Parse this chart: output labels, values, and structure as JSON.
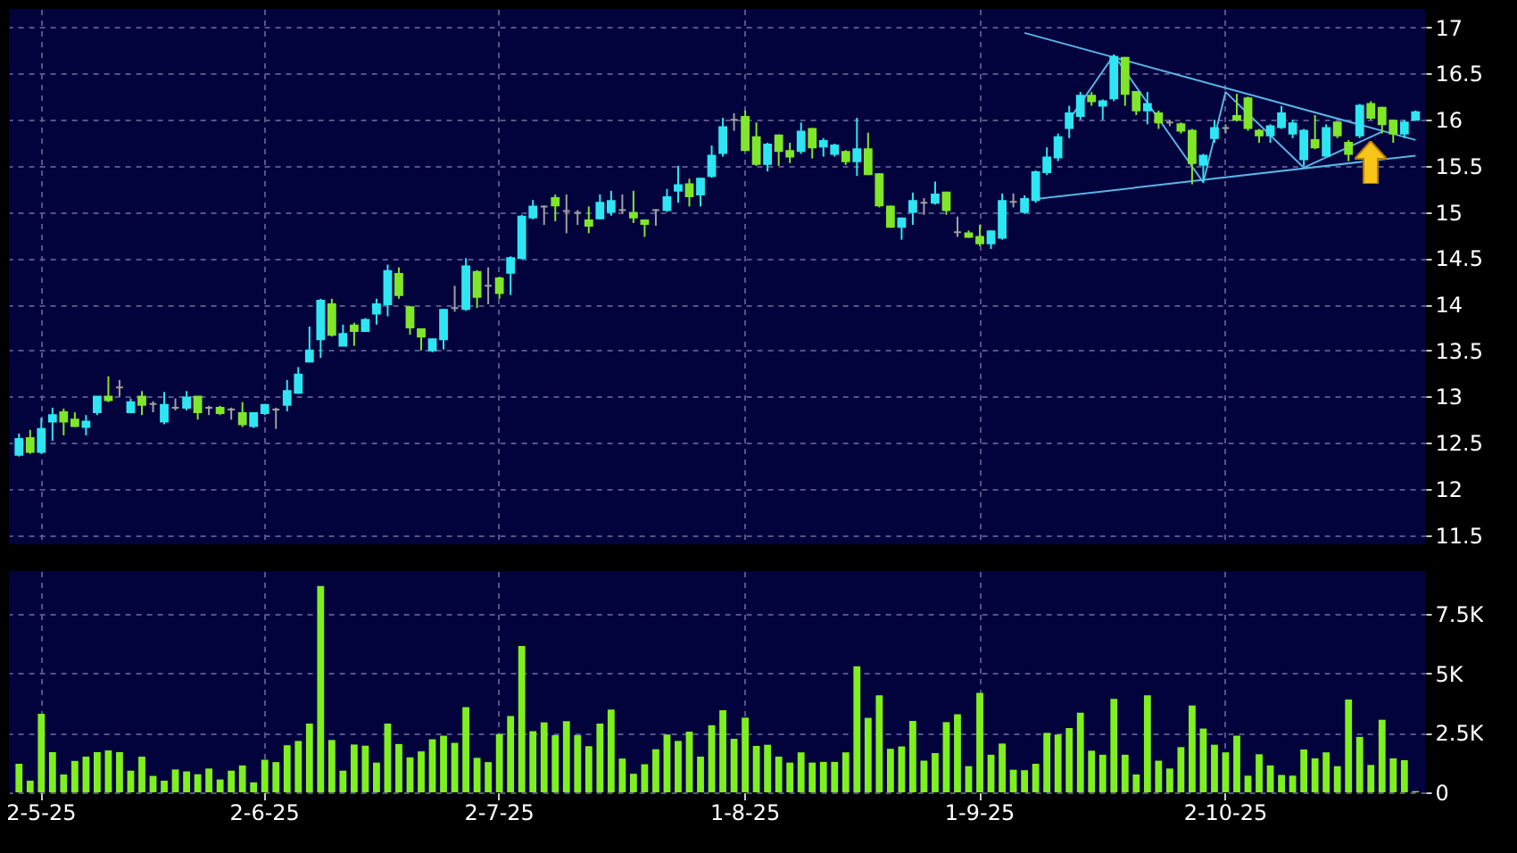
{
  "chart_data": [
    {
      "type": "candlestick",
      "categories": [
        null,
        null,
        null,
        null,
        null,
        null,
        null,
        null,
        null,
        null,
        null,
        null,
        null,
        null,
        null,
        null,
        null,
        null,
        null,
        null,
        null,
        null,
        null,
        null,
        null,
        null,
        null,
        null,
        null,
        null,
        null,
        null,
        null,
        null,
        null,
        null,
        null,
        null,
        null,
        null,
        null,
        null,
        null,
        null,
        null,
        null,
        null,
        null,
        null,
        null,
        null,
        null,
        null,
        null,
        null,
        null,
        null,
        null,
        null,
        null,
        null,
        null,
        null,
        null,
        null,
        null,
        null,
        null,
        null,
        null,
        null,
        null,
        null,
        null,
        null,
        null,
        null,
        null,
        null,
        null,
        null,
        null,
        null,
        null,
        null,
        null,
        null,
        null,
        null,
        null,
        null,
        null,
        null,
        null,
        null,
        null,
        null,
        null,
        null,
        null,
        null,
        null,
        null,
        null,
        null,
        null,
        null,
        null,
        null,
        null,
        null,
        null,
        null,
        null,
        null,
        null,
        null,
        null,
        null,
        null,
        null,
        null,
        null,
        null,
        null,
        null
      ],
      "ohlc": [
        [
          12.37,
          12.6,
          12.35,
          12.54
        ],
        [
          12.55,
          12.64,
          12.38,
          12.4
        ],
        [
          12.4,
          12.77,
          12.38,
          12.65
        ],
        [
          12.73,
          12.88,
          12.52,
          12.8
        ],
        [
          12.83,
          12.87,
          12.58,
          12.73
        ],
        [
          12.75,
          12.83,
          12.67,
          12.68
        ],
        [
          12.67,
          12.8,
          12.58,
          12.73
        ],
        [
          12.83,
          13.0,
          12.8,
          13.0
        ],
        [
          13.0,
          13.22,
          12.94,
          12.96
        ],
        [
          13.1,
          13.18,
          13.0,
          13.1
        ],
        [
          12.83,
          12.98,
          12.82,
          12.94
        ],
        [
          13.0,
          13.06,
          12.8,
          12.91
        ],
        [
          12.92,
          12.95,
          12.83,
          12.92
        ],
        [
          12.73,
          13.05,
          12.7,
          12.91
        ],
        [
          12.88,
          12.98,
          12.85,
          12.88
        ],
        [
          12.88,
          13.06,
          12.85,
          12.99
        ],
        [
          13.0,
          13.0,
          12.75,
          12.83
        ],
        [
          12.88,
          12.9,
          12.8,
          12.88
        ],
        [
          12.88,
          12.9,
          12.8,
          12.82
        ],
        [
          12.86,
          12.88,
          12.75,
          12.86
        ],
        [
          12.82,
          12.94,
          12.67,
          12.7
        ],
        [
          12.68,
          12.83,
          12.66,
          12.82
        ],
        [
          12.82,
          12.92,
          12.8,
          12.91
        ],
        [
          12.86,
          12.88,
          12.65,
          12.86
        ],
        [
          12.91,
          13.18,
          12.84,
          13.06
        ],
        [
          13.04,
          13.32,
          13.03,
          13.24
        ],
        [
          13.38,
          13.76,
          13.37,
          13.5
        ],
        [
          13.62,
          14.06,
          13.42,
          14.04
        ],
        [
          14.0,
          14.06,
          13.65,
          13.67
        ],
        [
          13.55,
          13.78,
          13.55,
          13.68
        ],
        [
          13.77,
          13.8,
          13.55,
          13.71
        ],
        [
          13.71,
          13.85,
          13.7,
          13.83
        ],
        [
          13.9,
          14.06,
          13.78,
          14.0
        ],
        [
          14.0,
          14.43,
          13.87,
          14.36
        ],
        [
          14.33,
          14.4,
          14.06,
          14.1
        ],
        [
          13.97,
          13.98,
          13.67,
          13.75
        ],
        [
          13.73,
          13.74,
          13.5,
          13.65
        ],
        [
          13.5,
          13.63,
          13.48,
          13.62
        ],
        [
          13.62,
          13.95,
          13.51,
          13.94
        ],
        [
          13.96,
          14.2,
          13.92,
          13.96
        ],
        [
          13.95,
          14.5,
          13.93,
          14.41
        ],
        [
          14.35,
          14.37,
          13.96,
          14.08
        ],
        [
          14.2,
          14.4,
          14.0,
          14.2
        ],
        [
          14.28,
          14.3,
          14.06,
          14.12
        ],
        [
          14.34,
          14.52,
          14.1,
          14.5
        ],
        [
          14.5,
          14.97,
          14.49,
          14.95
        ],
        [
          14.94,
          15.13,
          14.92,
          15.06
        ],
        [
          15.06,
          15.07,
          14.86,
          15.06
        ],
        [
          15.15,
          15.19,
          14.9,
          15.07
        ],
        [
          15.01,
          15.19,
          14.77,
          15.01
        ],
        [
          14.99,
          15.02,
          14.86,
          14.99
        ],
        [
          14.91,
          15.06,
          14.77,
          14.85
        ],
        [
          14.93,
          15.19,
          14.92,
          15.1
        ],
        [
          15.0,
          15.23,
          14.96,
          15.12
        ],
        [
          15.02,
          15.19,
          14.98,
          15.02
        ],
        [
          14.99,
          15.23,
          14.88,
          14.94
        ],
        [
          14.91,
          14.92,
          14.73,
          14.87
        ],
        [
          15.02,
          15.03,
          14.85,
          15.02
        ],
        [
          15.02,
          15.25,
          15.0,
          15.16
        ],
        [
          15.23,
          15.5,
          15.1,
          15.29
        ],
        [
          15.3,
          15.36,
          15.06,
          15.17
        ],
        [
          15.19,
          15.37,
          15.06,
          15.36
        ],
        [
          15.39,
          15.72,
          15.37,
          15.61
        ],
        [
          15.64,
          16.02,
          15.6,
          15.92
        ],
        [
          16.0,
          16.07,
          15.88,
          16.0
        ],
        [
          16.03,
          16.1,
          15.66,
          15.67
        ],
        [
          15.81,
          15.97,
          15.5,
          15.52
        ],
        [
          15.52,
          15.75,
          15.44,
          15.73
        ],
        [
          15.83,
          15.84,
          15.5,
          15.66
        ],
        [
          15.66,
          15.75,
          15.53,
          15.6
        ],
        [
          15.66,
          15.97,
          15.63,
          15.87
        ],
        [
          15.9,
          15.91,
          15.58,
          15.7
        ],
        [
          15.71,
          15.8,
          15.6,
          15.77
        ],
        [
          15.63,
          15.74,
          15.6,
          15.72
        ],
        [
          15.65,
          15.67,
          15.51,
          15.55
        ],
        [
          15.55,
          16.02,
          15.39,
          15.68
        ],
        [
          15.68,
          15.86,
          15.4,
          15.41
        ],
        [
          15.41,
          15.42,
          15.05,
          15.07
        ],
        [
          15.06,
          15.07,
          14.83,
          14.84
        ],
        [
          14.84,
          14.94,
          14.7,
          14.93
        ],
        [
          15.0,
          15.21,
          14.86,
          15.12
        ],
        [
          15.1,
          15.15,
          14.97,
          15.1
        ],
        [
          15.1,
          15.33,
          15.08,
          15.19
        ],
        [
          15.21,
          15.22,
          14.97,
          15.02
        ],
        [
          14.78,
          14.95,
          14.73,
          14.78
        ],
        [
          14.77,
          14.8,
          14.72,
          14.73
        ],
        [
          14.73,
          14.86,
          14.63,
          14.66
        ],
        [
          14.66,
          14.8,
          14.6,
          14.79
        ],
        [
          14.72,
          15.2,
          14.7,
          15.12
        ],
        [
          15.11,
          15.2,
          15.05,
          15.11
        ],
        [
          15.0,
          15.18,
          14.98,
          15.14
        ],
        [
          15.13,
          15.45,
          15.1,
          15.43
        ],
        [
          15.43,
          15.7,
          15.4,
          15.59
        ],
        [
          15.59,
          15.85,
          15.55,
          15.81
        ],
        [
          15.91,
          16.15,
          15.8,
          16.07
        ],
        [
          16.04,
          16.3,
          16.0,
          16.26
        ],
        [
          16.26,
          16.3,
          16.15,
          16.2
        ],
        [
          16.15,
          16.22,
          16.0,
          16.2
        ],
        [
          16.23,
          16.7,
          16.2,
          16.68
        ],
        [
          16.67,
          16.68,
          16.15,
          16.28
        ],
        [
          16.3,
          16.3,
          16.05,
          16.1
        ],
        [
          16.1,
          16.3,
          15.95,
          16.17
        ],
        [
          16.07,
          16.1,
          15.9,
          15.97
        ],
        [
          15.97,
          16.0,
          15.93,
          15.97
        ],
        [
          15.95,
          15.97,
          15.85,
          15.88
        ],
        [
          15.88,
          15.9,
          15.3,
          15.53
        ],
        [
          15.51,
          15.63,
          15.33,
          15.61
        ],
        [
          15.8,
          16.0,
          15.75,
          15.91
        ],
        [
          15.91,
          15.95,
          15.85,
          15.91
        ],
        [
          16.04,
          16.28,
          15.98,
          16.0
        ],
        [
          16.23,
          16.25,
          15.88,
          15.91
        ],
        [
          15.88,
          15.9,
          15.75,
          15.83
        ],
        [
          15.83,
          15.95,
          15.75,
          15.93
        ],
        [
          15.92,
          16.15,
          15.9,
          16.07
        ],
        [
          15.85,
          16.0,
          15.8,
          15.96
        ],
        [
          15.57,
          15.9,
          15.5,
          15.88
        ],
        [
          15.78,
          16.05,
          15.68,
          15.7
        ],
        [
          15.61,
          15.95,
          15.6,
          15.91
        ],
        [
          15.97,
          15.98,
          15.8,
          15.83
        ],
        [
          15.75,
          15.78,
          15.55,
          15.63
        ],
        [
          15.83,
          16.17,
          15.8,
          16.15
        ],
        [
          16.17,
          16.2,
          16.0,
          16.02
        ],
        [
          16.13,
          16.14,
          15.85,
          15.95
        ],
        [
          15.99,
          16.0,
          15.75,
          15.85
        ],
        [
          15.85,
          16.0,
          15.8,
          15.97
        ],
        [
          16.0,
          16.1,
          16.0,
          16.08
        ]
      ],
      "colors": [
        "#2ee6f2",
        "#80e62a",
        "#2ee6f2",
        "#2ee6f2",
        "#80e62a",
        "#80e62a",
        "#2ee6f2",
        "#2ee6f2",
        "#80e62a",
        "#a0a0a0",
        "#2ee6f2",
        "#80e62a",
        "#a0a0a0",
        "#2ee6f2",
        "#a0a0a0",
        "#2ee6f2",
        "#80e62a",
        "#a0a0a0",
        "#80e62a",
        "#a0a0a0",
        "#80e62a",
        "#2ee6f2",
        "#2ee6f2",
        "#a0a0a0",
        "#2ee6f2",
        "#2ee6f2",
        "#2ee6f2",
        "#2ee6f2",
        "#80e62a",
        "#2ee6f2",
        "#80e62a",
        "#2ee6f2",
        "#2ee6f2",
        "#2ee6f2",
        "#80e62a",
        "#80e62a",
        "#80e62a",
        "#2ee6f2",
        "#2ee6f2",
        "#a0a0a0",
        "#2ee6f2",
        "#80e62a",
        "#a0a0a0",
        "#80e62a",
        "#2ee6f2",
        "#2ee6f2",
        "#2ee6f2",
        "#a0a0a0",
        "#80e62a",
        "#a0a0a0",
        "#a0a0a0",
        "#80e62a",
        "#2ee6f2",
        "#2ee6f2",
        "#a0a0a0",
        "#80e62a",
        "#80e62a",
        "#a0a0a0",
        "#2ee6f2",
        "#2ee6f2",
        "#80e62a",
        "#2ee6f2",
        "#2ee6f2",
        "#2ee6f2",
        "#a0a0a0",
        "#80e62a",
        "#80e62a",
        "#2ee6f2",
        "#80e62a",
        "#80e62a",
        "#2ee6f2",
        "#80e62a",
        "#2ee6f2",
        "#2ee6f2",
        "#80e62a",
        "#2ee6f2",
        "#80e62a",
        "#80e62a",
        "#80e62a",
        "#2ee6f2",
        "#2ee6f2",
        "#a0a0a0",
        "#2ee6f2",
        "#80e62a",
        "#a0a0a0",
        "#80e62a",
        "#80e62a",
        "#2ee6f2",
        "#2ee6f2",
        "#a0a0a0",
        "#2ee6f2",
        "#2ee6f2",
        "#2ee6f2",
        "#2ee6f2",
        "#2ee6f2",
        "#2ee6f2",
        "#80e62a",
        "#2ee6f2",
        "#2ee6f2",
        "#80e62a",
        "#80e62a",
        "#2ee6f2",
        "#80e62a",
        "#a0a0a0",
        "#80e62a",
        "#80e62a",
        "#2ee6f2",
        "#2ee6f2",
        "#a0a0a0",
        "#80e62a",
        "#80e62a",
        "#80e62a",
        "#2ee6f2",
        "#2ee6f2",
        "#2ee6f2",
        "#2ee6f2",
        "#80e62a",
        "#2ee6f2",
        "#80e62a",
        "#80e62a",
        "#2ee6f2",
        "#80e62a",
        "#80e62a",
        "#80e62a",
        "#2ee6f2",
        "#2ee6f2"
      ],
      "series": [
        {
          "type": "line",
          "color": "#5ab4e6",
          "values": [
            null,
            null,
            null,
            null,
            null,
            null,
            null,
            null,
            null,
            null,
            null,
            null,
            null,
            null,
            null,
            null,
            null,
            null,
            null,
            null,
            null,
            null,
            null,
            null,
            null,
            null,
            null,
            null,
            null,
            null,
            null,
            null,
            null,
            null,
            null,
            null,
            null,
            null,
            null,
            null,
            null,
            null,
            null,
            null,
            null,
            null,
            null,
            null,
            null,
            null,
            null,
            null,
            null,
            null,
            null,
            null,
            null,
            null,
            null,
            null,
            null,
            null,
            null,
            null,
            null,
            null,
            null,
            null,
            null,
            null,
            null,
            null,
            null,
            null,
            null,
            null,
            null,
            null,
            null,
            null,
            null,
            null,
            null,
            null,
            null,
            null,
            null,
            null,
            null,
            null,
            16.94,
            null,
            null,
            null,
            null,
            null,
            null,
            null,
            null,
            null,
            null,
            null,
            null,
            null,
            null,
            null,
            null,
            null,
            null,
            null,
            null,
            null,
            null,
            null,
            null,
            null,
            null,
            null,
            null,
            null,
            null,
            null,
            null,
            null,
            null,
            15.78
          ]
        },
        {
          "type": "line",
          "color": "#5ab4e6",
          "values": [
            null,
            null,
            null,
            null,
            null,
            null,
            null,
            null,
            null,
            null,
            null,
            null,
            null,
            null,
            null,
            null,
            null,
            null,
            null,
            null,
            null,
            null,
            null,
            null,
            null,
            null,
            null,
            null,
            null,
            null,
            null,
            null,
            null,
            null,
            null,
            null,
            null,
            null,
            null,
            null,
            null,
            null,
            null,
            null,
            null,
            null,
            null,
            null,
            null,
            null,
            null,
            null,
            null,
            null,
            null,
            null,
            null,
            null,
            null,
            null,
            null,
            null,
            null,
            null,
            null,
            null,
            null,
            null,
            null,
            null,
            null,
            null,
            null,
            null,
            null,
            null,
            null,
            null,
            null,
            null,
            null,
            null,
            null,
            null,
            null,
            null,
            null,
            null,
            null,
            null,
            null,
            15.14,
            null,
            null,
            null,
            null,
            null,
            null,
            null,
            null,
            null,
            null,
            null,
            null,
            null,
            null,
            null,
            null,
            null,
            null,
            null,
            null,
            null,
            null,
            null,
            null,
            null,
            null,
            null,
            null,
            null,
            null,
            null,
            null,
            null,
            15.61
          ]
        },
        {
          "type": "line",
          "color": "#5ab4e6",
          "values": [
            null,
            null,
            null,
            null,
            null,
            null,
            null,
            null,
            null,
            null,
            null,
            null,
            null,
            null,
            null,
            null,
            null,
            null,
            null,
            null,
            null,
            null,
            null,
            null,
            null,
            null,
            null,
            null,
            null,
            null,
            null,
            null,
            null,
            null,
            null,
            null,
            null,
            null,
            null,
            null,
            null,
            null,
            null,
            null,
            null,
            null,
            null,
            null,
            null,
            null,
            null,
            null,
            null,
            null,
            null,
            null,
            null,
            null,
            null,
            null,
            null,
            null,
            null,
            null,
            null,
            null,
            null,
            null,
            null,
            null,
            null,
            null,
            null,
            null,
            null,
            null,
            null,
            null,
            null,
            null,
            null,
            null,
            null,
            null,
            null,
            null,
            null,
            null,
            null,
            null,
            null,
            null,
            null,
            null,
            16.0,
            null,
            null,
            null,
            16.7,
            null,
            null,
            null,
            null,
            null,
            null,
            null,
            15.32,
            null,
            16.3,
            null,
            null,
            null,
            null,
            null,
            null,
            15.48,
            null,
            null,
            null,
            null,
            null,
            null,
            15.87,
            null,
            null,
            null
          ]
        }
      ],
      "ylim": [
        11.4,
        17.2
      ],
      "yticks": [
        11.5,
        12,
        12.5,
        13,
        13.5,
        14,
        14.5,
        15,
        15.5,
        16,
        16.5,
        17
      ],
      "grid": true,
      "tick_labels": "y"
    },
    {
      "type": "bar",
      "categories": [
        null,
        null,
        "2-5-25",
        null,
        null,
        null,
        null,
        null,
        null,
        null,
        null,
        null,
        null,
        null,
        null,
        null,
        null,
        null,
        null,
        null,
        null,
        null,
        "2-6-25",
        null,
        null,
        null,
        null,
        null,
        null,
        null,
        null,
        null,
        null,
        null,
        null,
        null,
        null,
        null,
        null,
        null,
        null,
        null,
        null,
        "2-7-25",
        null,
        null,
        null,
        null,
        null,
        null,
        null,
        null,
        null,
        null,
        null,
        null,
        null,
        null,
        null,
        null,
        null,
        null,
        null,
        null,
        null,
        "1-8-25",
        null,
        null,
        null,
        null,
        null,
        null,
        null,
        null,
        null,
        null,
        null,
        null,
        null,
        null,
        null,
        null,
        null,
        null,
        null,
        null,
        "1-9-25",
        null,
        null,
        null,
        null,
        null,
        null,
        null,
        null,
        null,
        null,
        null,
        null,
        null,
        null,
        null,
        null,
        null,
        null,
        null,
        null,
        null,
        "2-10-25",
        null,
        null,
        null,
        null,
        null,
        null,
        null,
        null,
        null,
        null,
        null,
        null,
        null,
        null,
        null,
        null,
        null
      ],
      "values": [
        1200,
        490,
        3300,
        1690,
        750,
        1320,
        1500,
        1690,
        1760,
        1690,
        910,
        1500,
        690,
        490,
        960,
        880,
        760,
        1000,
        540,
        910,
        1130,
        420,
        1370,
        1270,
        1980,
        2160,
        2890,
        8670,
        2200,
        910,
        2010,
        1960,
        1250,
        2890,
        2030,
        1470,
        1720,
        2230,
        2380,
        2080,
        3580,
        1450,
        1270,
        2450,
        3210,
        6150,
        2570,
        2940,
        2400,
        2990,
        2400,
        1940,
        2890,
        3480,
        1420,
        780,
        1180,
        1810,
        2430,
        2160,
        2550,
        1500,
        2820,
        3450,
        2250,
        3140,
        1950,
        2000,
        1500,
        1250,
        1680,
        1250,
        1280,
        1280,
        1680,
        5300,
        3130,
        4080,
        1830,
        1930,
        3000,
        1330,
        1650,
        2950,
        3280,
        1100,
        4180,
        1580,
        2050,
        950,
        930,
        1200,
        2500,
        2430,
        2700,
        3350,
        1750,
        1580,
        3930,
        1580,
        750,
        4080,
        1330,
        1000,
        1900,
        3650,
        2680,
        2000,
        1680,
        2380,
        700,
        1600,
        1130,
        730,
        700,
        1800,
        1430,
        1680,
        1100,
        3900,
        2330,
        1150,
        3050,
        1430,
        1350,
        50
      ],
      "color": "#7ff01e",
      "ylim": [
        0,
        9300
      ],
      "yticks": [
        0,
        {
          "value": 2500,
          "label": "2.5K"
        },
        {
          "value": 5000,
          "label": "5K"
        },
        {
          "value": 7500,
          "label": "7.5K"
        }
      ],
      "grid": true
    }
  ]
}
